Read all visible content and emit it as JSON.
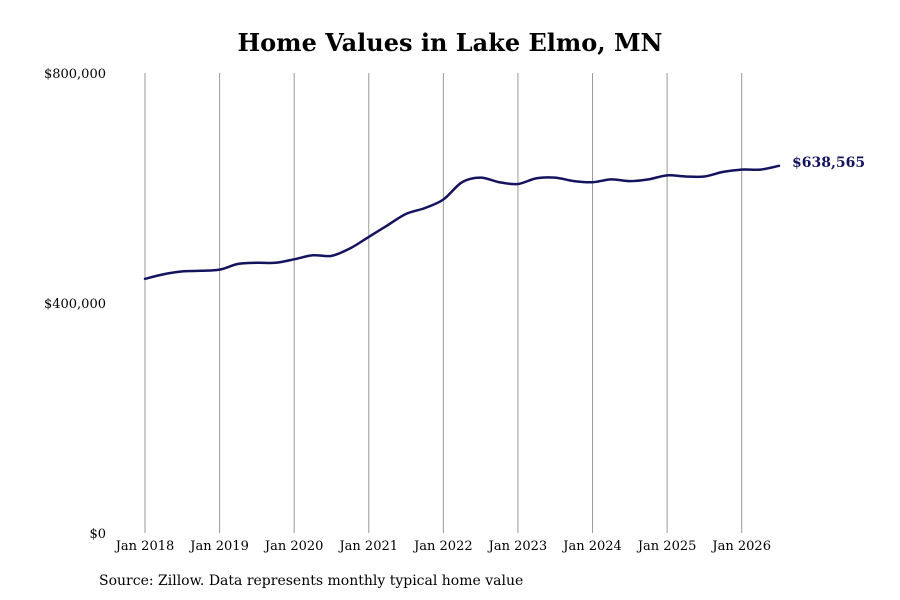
{
  "chart_data": {
    "type": "line",
    "title": "Home Values in Lake Elmo, MN",
    "source": "Source: Zillow. Data represents monthly typical home value",
    "xlabel": "",
    "ylabel": "",
    "ylim": [
      0,
      800000
    ],
    "xlim": [
      "2018-01",
      "2026-07"
    ],
    "y_ticks": [
      {
        "value": 0,
        "label": "$0"
      },
      {
        "value": 400000,
        "label": "$400,000"
      },
      {
        "value": 800000,
        "label": "$800,000"
      }
    ],
    "x_ticks": [
      {
        "value": "2018-01",
        "label": "Jan 2018"
      },
      {
        "value": "2019-01",
        "label": "Jan 2019"
      },
      {
        "value": "2020-01",
        "label": "Jan 2020"
      },
      {
        "value": "2021-01",
        "label": "Jan 2021"
      },
      {
        "value": "2022-01",
        "label": "Jan 2022"
      },
      {
        "value": "2023-01",
        "label": "Jan 2023"
      },
      {
        "value": "2024-01",
        "label": "Jan 2024"
      },
      {
        "value": "2025-01",
        "label": "Jan 2025"
      },
      {
        "value": "2026-01",
        "label": "Jan 2026"
      }
    ],
    "grid": "vertical",
    "line_color": "#14135e",
    "grid_color": "#999999",
    "end_label": "$638,565",
    "series": [
      {
        "x": [
          "2018-01",
          "2018-04",
          "2018-07",
          "2018-10",
          "2019-01",
          "2019-04",
          "2019-07",
          "2019-10",
          "2020-01",
          "2020-04",
          "2020-07",
          "2020-10",
          "2021-01",
          "2021-04",
          "2021-07",
          "2021-10",
          "2022-01",
          "2022-04",
          "2022-07",
          "2022-10",
          "2023-01",
          "2023-04",
          "2023-07",
          "2023-10",
          "2024-01",
          "2024-04",
          "2024-07",
          "2024-10",
          "2025-01",
          "2025-04",
          "2025-07",
          "2025-10",
          "2026-01",
          "2026-04",
          "2026-07"
        ],
        "values": [
          442000,
          450000,
          455000,
          456000,
          458000,
          468000,
          470000,
          470000,
          476000,
          483000,
          482000,
          495000,
          515000,
          535000,
          555000,
          565000,
          580000,
          610000,
          618000,
          610000,
          607000,
          617000,
          618000,
          612000,
          610000,
          615000,
          612000,
          615000,
          622000,
          620000,
          620000,
          628000,
          632000,
          632000,
          638565
        ]
      }
    ]
  }
}
